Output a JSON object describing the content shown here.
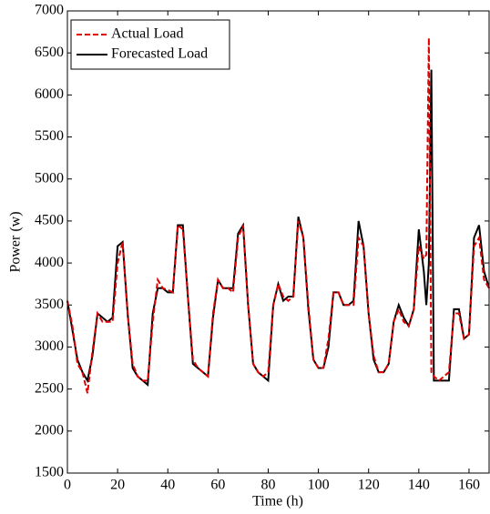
{
  "chart_data": {
    "type": "line",
    "x_label": "Time (h)",
    "y_label": "Power (w)",
    "x": [
      0,
      2,
      4,
      6,
      8,
      10,
      12,
      14,
      16,
      18,
      20,
      22,
      24,
      26,
      28,
      30,
      32,
      34,
      36,
      38,
      40,
      42,
      44,
      46,
      48,
      50,
      52,
      54,
      56,
      58,
      60,
      62,
      64,
      66,
      68,
      70,
      72,
      74,
      76,
      78,
      80,
      82,
      84,
      86,
      88,
      90,
      92,
      94,
      96,
      98,
      100,
      102,
      104,
      106,
      108,
      110,
      112,
      114,
      116,
      118,
      120,
      122,
      124,
      126,
      128,
      130,
      132,
      134,
      136,
      138,
      140,
      142,
      143,
      144,
      145,
      146,
      148,
      150,
      152,
      154,
      156,
      158,
      160,
      162,
      164,
      166,
      168
    ],
    "series": [
      {
        "name": "Actual Load",
        "color": "#e00000",
        "dash": true,
        "values": [
          3550,
          3250,
          2800,
          2700,
          2450,
          2950,
          3400,
          3300,
          3300,
          3300,
          4000,
          4250,
          3400,
          2800,
          2650,
          2600,
          2600,
          3300,
          3800,
          3700,
          3680,
          3650,
          4450,
          4400,
          3600,
          2850,
          2750,
          2700,
          2650,
          3400,
          3800,
          3700,
          3700,
          3650,
          4300,
          4450,
          3500,
          2800,
          2700,
          2650,
          2700,
          3500,
          3750,
          3600,
          3550,
          3600,
          4500,
          4300,
          3500,
          2850,
          2750,
          2750,
          3100,
          3650,
          3650,
          3500,
          3500,
          3500,
          4300,
          4200,
          3400,
          2900,
          2700,
          2700,
          2800,
          3300,
          3450,
          3300,
          3250,
          3450,
          4200,
          4050,
          4100,
          6680,
          2700,
          2650,
          2600,
          2650,
          2700,
          3400,
          3400,
          3100,
          3150,
          4200,
          4300,
          3800,
          3700
        ]
      },
      {
        "name": "Forecasted Load",
        "color": "#000000",
        "dash": false,
        "values": [
          3550,
          3200,
          2850,
          2700,
          2600,
          2900,
          3400,
          3350,
          3300,
          3350,
          4200,
          4250,
          3400,
          2750,
          2650,
          2600,
          2550,
          3400,
          3700,
          3700,
          3650,
          3650,
          4450,
          4450,
          3600,
          2800,
          2750,
          2700,
          2650,
          3350,
          3800,
          3700,
          3700,
          3700,
          4350,
          4450,
          3500,
          2800,
          2700,
          2650,
          2600,
          3500,
          3750,
          3550,
          3600,
          3600,
          4550,
          4300,
          3450,
          2850,
          2750,
          2750,
          3000,
          3650,
          3650,
          3500,
          3500,
          3550,
          4500,
          4200,
          3400,
          2850,
          2700,
          2700,
          2800,
          3300,
          3500,
          3350,
          3250,
          3450,
          4400,
          3900,
          3500,
          4000,
          6300,
          2600,
          2600,
          2600,
          2600,
          3450,
          3450,
          3100,
          3150,
          4300,
          4450,
          3900,
          3700
        ]
      }
    ],
    "xlim": [
      0,
      168
    ],
    "ylim": [
      1500,
      7000
    ],
    "xticks": [
      0,
      20,
      40,
      60,
      80,
      100,
      120,
      140,
      160
    ],
    "yticks": [
      1500,
      2000,
      2500,
      3000,
      3500,
      4000,
      4500,
      5000,
      5500,
      6000,
      6500,
      7000
    ],
    "legend": "upper left",
    "grid": false
  }
}
